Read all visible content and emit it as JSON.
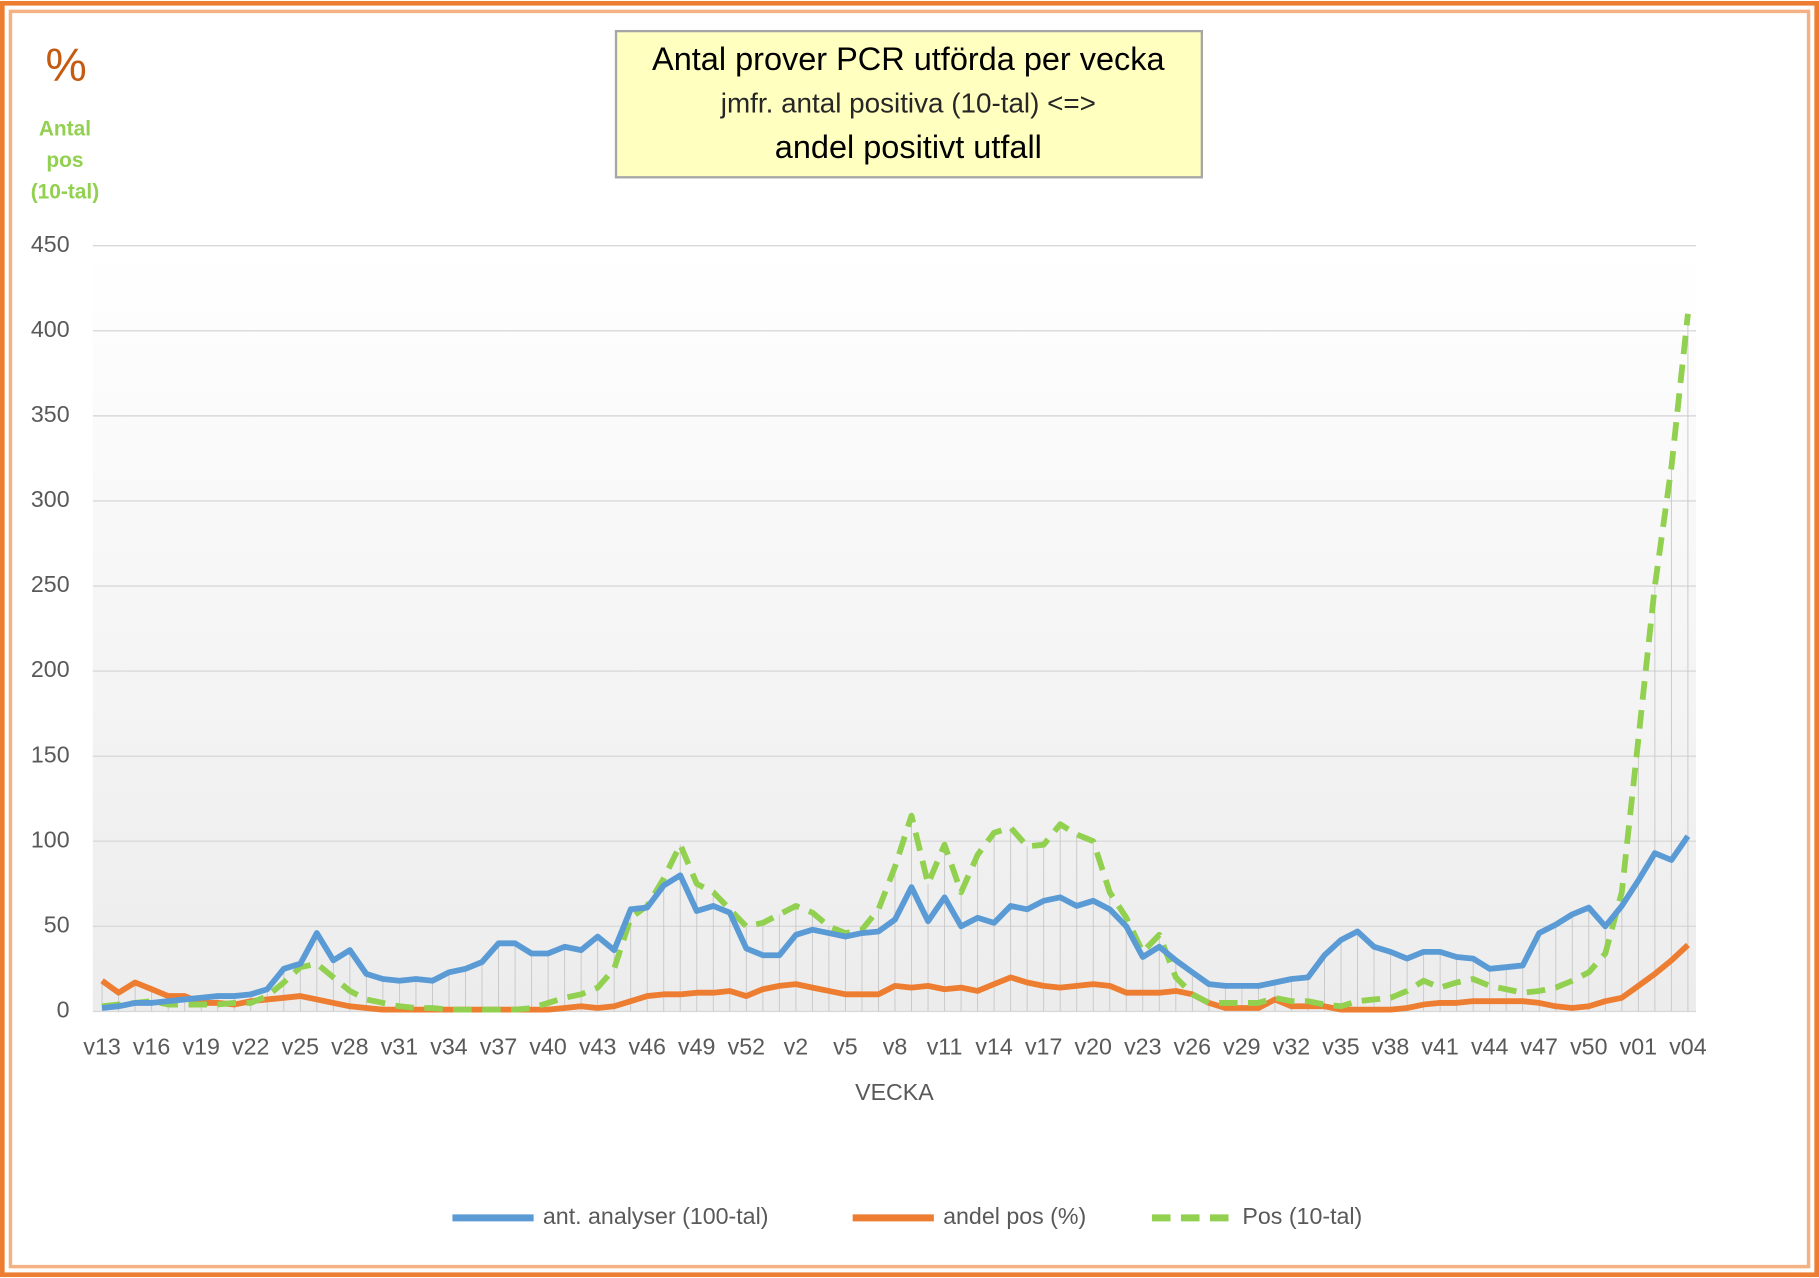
{
  "chart_data": {
    "type": "line",
    "title": [
      "Antal prover PCR utförda per vecka",
      "jmfr. antal positiva (10-tal) <=>",
      "andel positivt utfall"
    ],
    "y_label": "%",
    "y_label2": "Antal pos (10-tal)",
    "x_label": "VECKA",
    "categories": [
      "v13",
      null,
      null,
      "v16",
      null,
      null,
      "v19",
      null,
      null,
      "v22",
      null,
      null,
      "v25",
      null,
      null,
      "v28",
      null,
      null,
      "v31",
      null,
      null,
      "v34",
      null,
      null,
      "v37",
      null,
      null,
      "v40",
      null,
      null,
      "v43",
      null,
      null,
      "v46",
      null,
      null,
      "v49",
      null,
      null,
      "v52",
      null,
      null,
      "v2",
      null,
      null,
      "v5",
      null,
      null,
      "v8",
      null,
      null,
      "v11",
      null,
      null,
      "v14",
      null,
      null,
      "v17",
      null,
      null,
      "v20",
      null,
      null,
      "v23",
      null,
      null,
      "v26",
      null,
      null,
      "v29",
      null,
      null,
      "v32",
      null,
      null,
      "v35",
      null,
      null,
      "v38",
      null,
      null,
      "v41",
      null,
      null,
      "v44",
      null,
      null,
      "v47",
      null,
      null,
      "v50",
      null,
      null,
      "v01",
      null,
      null,
      "v04"
    ],
    "series": [
      {
        "name": "ant. analyser (100-tal)",
        "color": "#5b9bd5",
        "dash": false,
        "values": [
          2,
          3,
          5,
          5,
          6,
          7,
          8,
          9,
          9,
          10,
          13,
          25,
          28,
          46,
          30,
          36,
          22,
          19,
          18,
          19,
          18,
          23,
          25,
          29,
          40,
          40,
          34,
          34,
          38,
          36,
          44,
          36,
          60,
          61,
          74,
          80,
          59,
          62,
          58,
          37,
          33,
          33,
          45,
          48,
          46,
          44,
          46,
          47,
          54,
          73,
          53,
          67,
          50,
          55,
          52,
          62,
          60,
          65,
          67,
          62,
          65,
          60,
          50,
          32,
          38,
          30,
          23,
          16,
          15,
          15,
          15,
          17,
          19,
          20,
          33,
          42,
          47,
          38,
          35,
          31,
          35,
          35,
          32,
          31,
          25,
          26,
          27,
          46,
          51,
          57,
          61,
          50,
          62,
          77,
          93,
          89,
          103
        ]
      },
      {
        "name": "andel pos (%)",
        "color": "#ed7d31",
        "dash": false,
        "values": [
          18,
          11,
          17,
          13,
          9,
          9,
          5,
          5,
          4,
          6,
          7,
          8,
          9,
          7,
          5,
          3,
          2,
          1,
          1,
          1,
          1,
          1,
          1,
          1,
          1,
          1,
          1,
          1,
          2,
          3,
          2,
          3,
          6,
          9,
          10,
          10,
          11,
          11,
          12,
          9,
          13,
          15,
          16,
          14,
          12,
          10,
          10,
          10,
          15,
          14,
          15,
          13,
          14,
          12,
          16,
          20,
          17,
          15,
          14,
          15,
          16,
          15,
          11,
          11,
          11,
          12,
          10,
          5,
          2,
          2,
          2,
          7,
          3,
          3,
          3,
          1,
          1,
          1,
          1,
          2,
          4,
          5,
          5,
          6,
          6,
          6,
          6,
          5,
          3,
          2,
          3,
          6,
          8,
          15,
          22,
          30,
          39
        ]
      },
      {
        "name": "Pos (10-tal)",
        "color": "#92d050",
        "dash": true,
        "values": [
          3,
          4,
          5,
          6,
          4,
          4,
          4,
          4,
          5,
          5,
          9,
          17,
          26,
          28,
          20,
          12,
          7,
          5,
          3,
          2,
          2,
          1,
          1,
          1,
          1,
          1,
          2,
          5,
          8,
          10,
          14,
          25,
          55,
          62,
          78,
          98,
          75,
          70,
          60,
          50,
          52,
          57,
          62,
          58,
          50,
          46,
          48,
          60,
          85,
          115,
          75,
          98,
          70,
          92,
          105,
          108,
          97,
          98,
          110,
          104,
          100,
          70,
          55,
          35,
          45,
          20,
          10,
          5,
          5,
          5,
          5,
          8,
          6,
          6,
          4,
          3,
          6,
          7,
          8,
          12,
          18,
          14,
          17,
          19,
          15,
          13,
          11,
          12,
          14,
          18,
          23,
          34,
          70,
          160,
          250,
          320,
          410
        ]
      }
    ],
    "ylim": [
      0,
      450
    ],
    "yticks": [
      0,
      50,
      100,
      150,
      200,
      250,
      300,
      350,
      400,
      450
    ],
    "grid": true,
    "legend": "bottom"
  }
}
